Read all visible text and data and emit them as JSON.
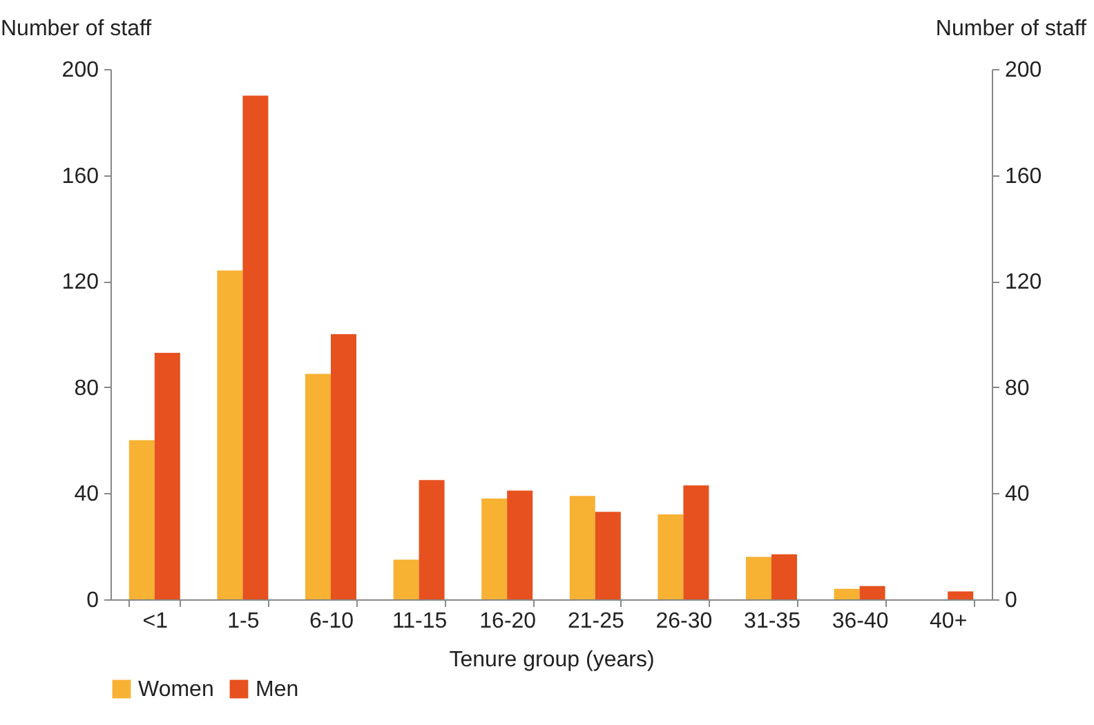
{
  "chart_data": {
    "type": "bar",
    "xlabel": "Tenure group (years)",
    "ylabel": "Number of staff",
    "y2label": "Number of staff",
    "categories": [
      "<1",
      "1-5",
      "6-10",
      "11-15",
      "16-20",
      "21-25",
      "26-30",
      "31-35",
      "36-40",
      "40+"
    ],
    "series": [
      {
        "name": "Women",
        "color": "#f7b133",
        "values": [
          60,
          124,
          85,
          15,
          38,
          39,
          32,
          16,
          4,
          0
        ]
      },
      {
        "name": "Men",
        "color": "#e6511f",
        "values": [
          93,
          190,
          100,
          45,
          41,
          33,
          43,
          17,
          5,
          3
        ]
      }
    ],
    "ylim": [
      0,
      200
    ],
    "yticks": [
      0,
      40,
      80,
      120,
      160,
      200
    ],
    "y2lim": [
      0,
      200
    ],
    "y2ticks": [
      0,
      40,
      80,
      120,
      160,
      200
    ],
    "grid": false,
    "legend": "bottom"
  }
}
